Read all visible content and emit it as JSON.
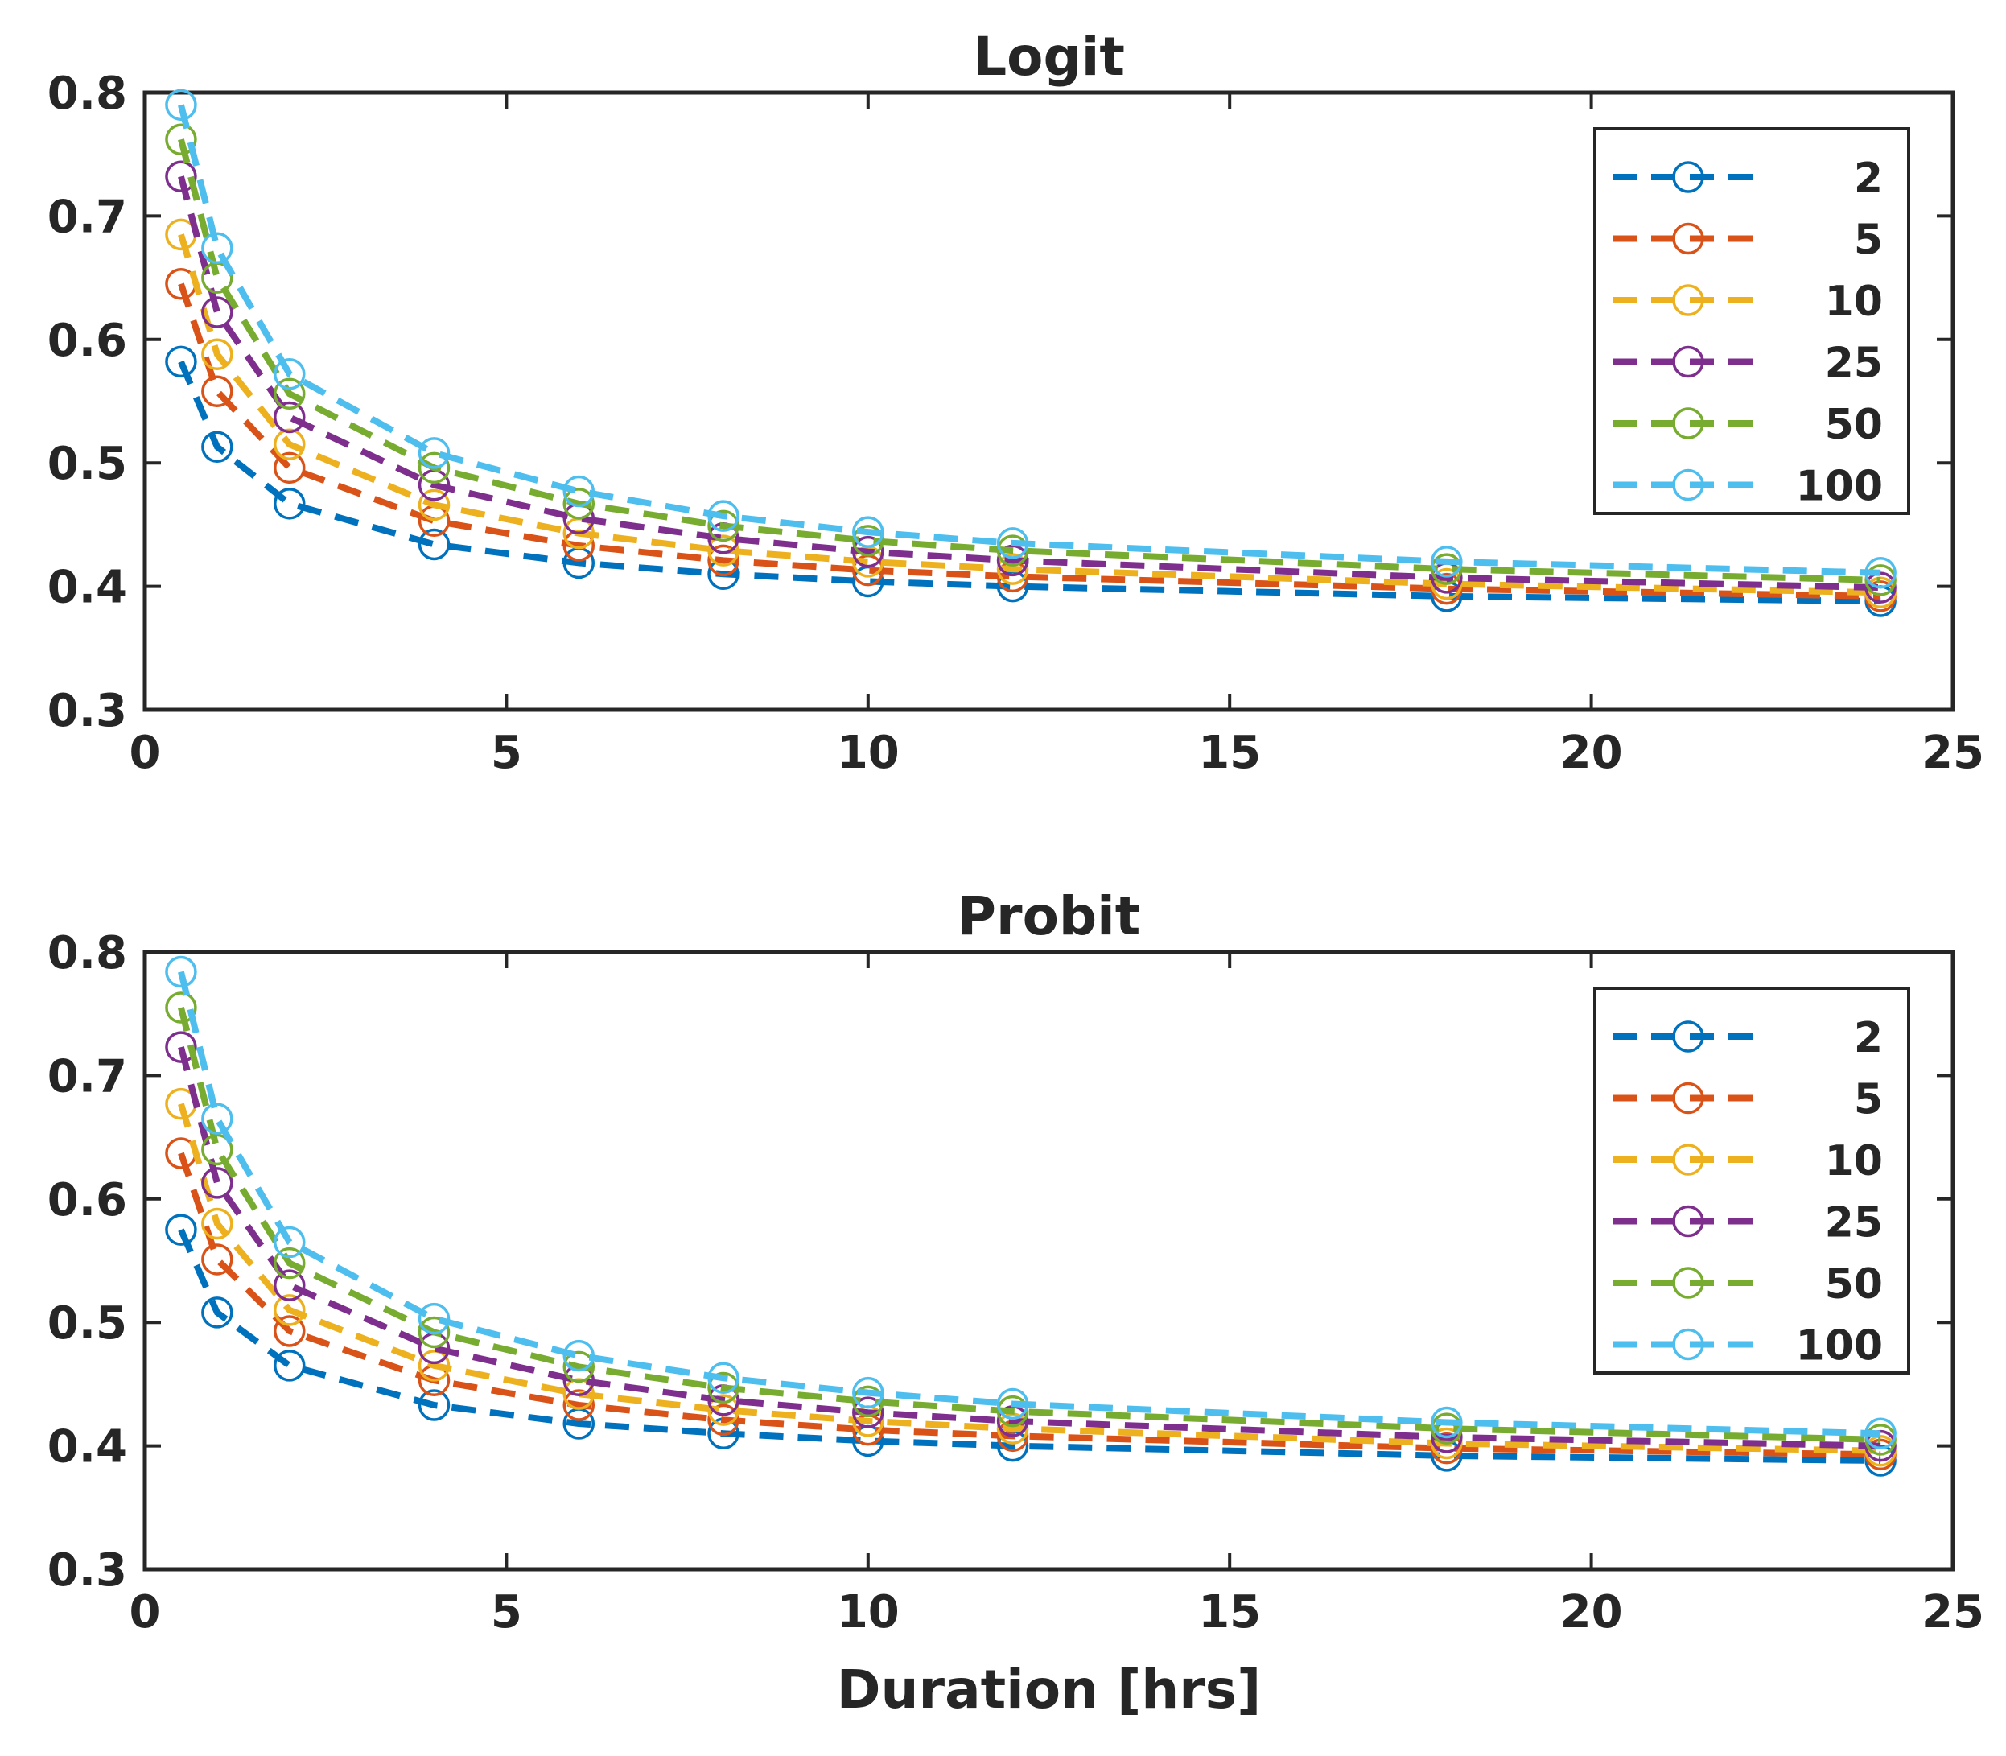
{
  "chart_data": [
    {
      "type": "line",
      "title": "Logit",
      "xlabel": "",
      "ylabel": "",
      "xlim": [
        0,
        25
      ],
      "ylim": [
        0.3,
        0.8
      ],
      "xticks": [
        "0",
        "5",
        "10",
        "15",
        "20",
        "25"
      ],
      "yticks": [
        "0.3",
        "0.4",
        "0.5",
        "0.6",
        "0.7",
        "0.8"
      ],
      "legend_position": "top-right",
      "x": [
        0.5,
        1,
        2,
        4,
        6,
        8,
        10,
        12,
        18,
        24
      ],
      "series": [
        {
          "name": "2",
          "color": "#0072BD",
          "values": [
            0.582,
            0.513,
            0.467,
            0.434,
            0.419,
            0.41,
            0.404,
            0.4,
            0.392,
            0.388
          ]
        },
        {
          "name": "5",
          "color": "#D95319",
          "values": [
            0.645,
            0.558,
            0.496,
            0.453,
            0.433,
            0.421,
            0.413,
            0.408,
            0.398,
            0.392
          ]
        },
        {
          "name": "10",
          "color": "#EDB120",
          "values": [
            0.685,
            0.588,
            0.515,
            0.466,
            0.443,
            0.429,
            0.42,
            0.414,
            0.402,
            0.395
          ]
        },
        {
          "name": "25",
          "color": "#7E2F8E",
          "values": [
            0.732,
            0.622,
            0.537,
            0.482,
            0.455,
            0.439,
            0.428,
            0.421,
            0.407,
            0.399
          ]
        },
        {
          "name": "50",
          "color": "#77AC30",
          "values": [
            0.762,
            0.65,
            0.556,
            0.496,
            0.467,
            0.449,
            0.437,
            0.429,
            0.414,
            0.405
          ]
        },
        {
          "name": "100",
          "color": "#4DBEEE",
          "values": [
            0.79,
            0.674,
            0.572,
            0.508,
            0.477,
            0.457,
            0.444,
            0.435,
            0.42,
            0.411
          ]
        }
      ]
    },
    {
      "type": "line",
      "title": "Probit",
      "xlabel": "Duration [hrs]",
      "ylabel": "",
      "xlim": [
        0,
        25
      ],
      "ylim": [
        0.3,
        0.8
      ],
      "xticks": [
        "0",
        "5",
        "10",
        "15",
        "20",
        "25"
      ],
      "yticks": [
        "0.3",
        "0.4",
        "0.5",
        "0.6",
        "0.7",
        "0.8"
      ],
      "legend_position": "top-right",
      "x": [
        0.5,
        1,
        2,
        4,
        6,
        8,
        10,
        12,
        18,
        24
      ],
      "series": [
        {
          "name": "2",
          "color": "#0072BD",
          "values": [
            0.575,
            0.508,
            0.465,
            0.433,
            0.418,
            0.41,
            0.404,
            0.4,
            0.392,
            0.388
          ]
        },
        {
          "name": "5",
          "color": "#D95319",
          "values": [
            0.637,
            0.551,
            0.493,
            0.453,
            0.433,
            0.421,
            0.413,
            0.408,
            0.398,
            0.393
          ]
        },
        {
          "name": "10",
          "color": "#EDB120",
          "values": [
            0.677,
            0.58,
            0.51,
            0.465,
            0.442,
            0.429,
            0.42,
            0.414,
            0.402,
            0.396
          ]
        },
        {
          "name": "25",
          "color": "#7E2F8E",
          "values": [
            0.723,
            0.613,
            0.53,
            0.479,
            0.453,
            0.437,
            0.427,
            0.42,
            0.407,
            0.4
          ]
        },
        {
          "name": "50",
          "color": "#77AC30",
          "values": [
            0.755,
            0.64,
            0.548,
            0.492,
            0.464,
            0.447,
            0.436,
            0.428,
            0.414,
            0.405
          ]
        },
        {
          "name": "100",
          "color": "#4DBEEE",
          "values": [
            0.784,
            0.665,
            0.565,
            0.503,
            0.473,
            0.455,
            0.443,
            0.434,
            0.419,
            0.41
          ]
        }
      ]
    }
  ]
}
